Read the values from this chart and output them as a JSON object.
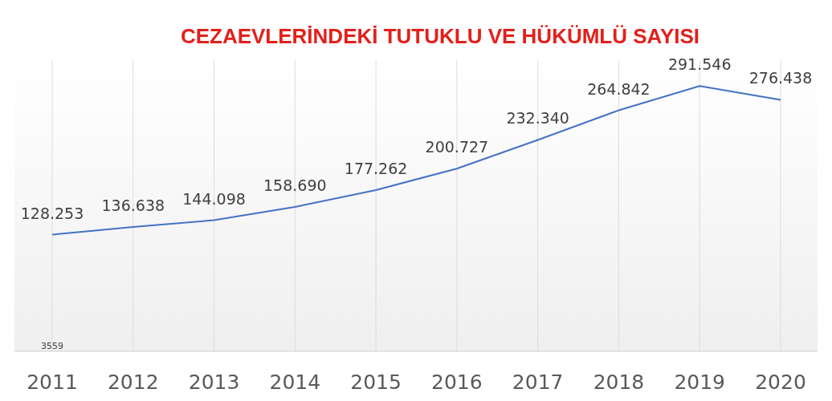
{
  "chart_data": {
    "type": "line",
    "title": "CEZAEVLERİNDEKİ TUTUKLU VE HÜKÜMLÜ SAYISI",
    "categories": [
      "2011",
      "2012",
      "2013",
      "2014",
      "2015",
      "2016",
      "2017",
      "2018",
      "2019",
      "2020"
    ],
    "series": [
      {
        "color": "#4472c4",
        "values": [
          128253,
          136638,
          144098,
          158690,
          177262,
          200727,
          232340,
          264842,
          291546,
          276438
        ],
        "value_labels": [
          "128.253",
          "136.638",
          "144.098",
          "158.690",
          "177.262",
          "200.727",
          "232.340",
          "264.842",
          "291.546",
          "276.438"
        ]
      }
    ],
    "ylim": [
      0,
      320000
    ],
    "tick_labels": "x",
    "grid": "x",
    "marker": "none",
    "line_style": "solid",
    "annotations": [
      "3559"
    ]
  }
}
